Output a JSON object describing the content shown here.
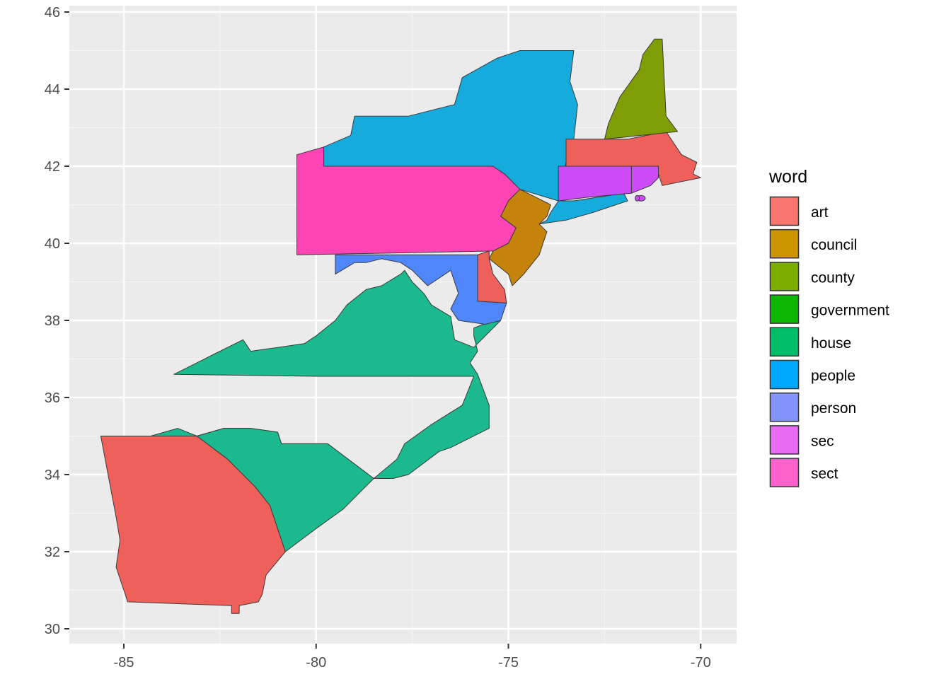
{
  "chart_data": {
    "type": "choropleth map",
    "x_ticks": [
      "-85",
      "-80",
      "-75",
      "-70"
    ],
    "y_ticks": [
      "30",
      "32",
      "34",
      "36",
      "38",
      "40",
      "42",
      "44",
      "46"
    ],
    "xlim": [
      -86.4,
      -69.1
    ],
    "ylim": [
      29.8,
      46.1
    ],
    "grid": true,
    "legend": {
      "title": "word",
      "position": "right",
      "entries": [
        {
          "label": "art",
          "color": "#F8766D"
        },
        {
          "label": "council",
          "color": "#CD9600"
        },
        {
          "label": "county",
          "color": "#7CAE00"
        },
        {
          "label": "government",
          "color": "#0CB702"
        },
        {
          "label": "house",
          "color": "#00BE67"
        },
        {
          "label": "people",
          "color": "#00A9FF"
        },
        {
          "label": "person",
          "color": "#8494FF"
        },
        {
          "label": "sec",
          "color": "#E76BF3"
        },
        {
          "label": "sect",
          "color": "#FF61CC"
        }
      ]
    },
    "regions": [
      {
        "word": "art",
        "color": "#F0605A",
        "coords": [
          [
            -85.6,
            35.0
          ],
          [
            -84.3,
            35.0
          ],
          [
            -83.1,
            35.0
          ],
          [
            -82.3,
            34.4
          ],
          [
            -81.6,
            33.7
          ],
          [
            -81.2,
            33.2
          ],
          [
            -81.0,
            32.6
          ],
          [
            -80.8,
            32.0
          ],
          [
            -81.3,
            31.4
          ],
          [
            -81.4,
            30.9
          ],
          [
            -81.5,
            30.7
          ],
          [
            -82.0,
            30.6
          ],
          [
            -82.0,
            30.4
          ],
          [
            -82.2,
            30.4
          ],
          [
            -82.2,
            30.6
          ],
          [
            -84.9,
            30.7
          ],
          [
            -85.0,
            31.0
          ],
          [
            -85.2,
            31.6
          ],
          [
            -85.1,
            32.3
          ],
          [
            -85.2,
            32.9
          ],
          [
            -85.6,
            35.0
          ]
        ]
      },
      {
        "word": "house",
        "color": "#1BB98D",
        "coords": [
          [
            -83.1,
            35.0
          ],
          [
            -82.4,
            35.2
          ],
          [
            -81.7,
            35.2
          ],
          [
            -81.0,
            35.1
          ],
          [
            -80.9,
            34.8
          ],
          [
            -79.7,
            34.8
          ],
          [
            -78.5,
            33.9
          ],
          [
            -78.0,
            33.9
          ],
          [
            -77.6,
            34.0
          ],
          [
            -76.8,
            34.6
          ],
          [
            -76.5,
            34.7
          ],
          [
            -75.5,
            35.2
          ],
          [
            -75.5,
            35.8
          ],
          [
            -75.8,
            36.6
          ],
          [
            -76.0,
            36.9
          ],
          [
            -75.8,
            37.2
          ],
          [
            -75.9,
            37.6
          ],
          [
            -75.9,
            37.8
          ],
          [
            -75.4,
            38.0
          ],
          [
            -75.2,
            38.0
          ],
          [
            -75.9,
            37.3
          ],
          [
            -76.4,
            37.5
          ],
          [
            -76.5,
            38.1
          ],
          [
            -77.0,
            38.4
          ],
          [
            -77.2,
            38.7
          ],
          [
            -77.5,
            39.0
          ],
          [
            -77.7,
            39.3
          ],
          [
            -77.8,
            39.2
          ],
          [
            -78.3,
            38.9
          ],
          [
            -78.7,
            38.8
          ],
          [
            -79.2,
            38.4
          ],
          [
            -79.5,
            38.0
          ],
          [
            -80.0,
            37.6
          ],
          [
            -80.3,
            37.4
          ],
          [
            -81.0,
            37.3
          ],
          [
            -81.7,
            37.2
          ],
          [
            -81.9,
            37.5
          ],
          [
            -82.7,
            37.1
          ],
          [
            -83.7,
            36.6
          ],
          [
            -80.0,
            36.55
          ],
          [
            -75.9,
            36.55
          ],
          [
            -76.0,
            36.3
          ],
          [
            -76.2,
            35.8
          ],
          [
            -77.0,
            35.3
          ],
          [
            -77.7,
            34.8
          ],
          [
            -77.9,
            34.4
          ],
          [
            -78.5,
            33.9
          ],
          [
            -79.7,
            34.8
          ],
          [
            -80.9,
            34.8
          ],
          [
            -81.0,
            35.1
          ],
          [
            -82.4,
            35.2
          ],
          [
            -83.1,
            35.0
          ],
          [
            -83.6,
            35.2
          ],
          [
            -84.3,
            35.0
          ]
        ]
      },
      {
        "word": "house",
        "color": "#1BB98D",
        "coords": [
          [
            -83.1,
            35.0
          ],
          [
            -82.3,
            34.4
          ],
          [
            -81.6,
            33.7
          ],
          [
            -81.2,
            33.2
          ],
          [
            -81.0,
            32.6
          ],
          [
            -80.8,
            32.0
          ],
          [
            -80.0,
            32.6
          ],
          [
            -79.3,
            33.1
          ],
          [
            -78.7,
            33.7
          ],
          [
            -78.5,
            33.9
          ],
          [
            -79.7,
            34.8
          ],
          [
            -80.9,
            34.8
          ],
          [
            -81.0,
            35.1
          ],
          [
            -81.7,
            35.2
          ],
          [
            -82.4,
            35.2
          ],
          [
            -83.1,
            35.0
          ]
        ]
      },
      {
        "word": "sect",
        "color": "#FF45B5",
        "coords": [
          [
            -80.5,
            42.3
          ],
          [
            -79.8,
            42.5
          ],
          [
            -79.8,
            42.0
          ],
          [
            -75.4,
            42.0
          ],
          [
            -75.1,
            41.8
          ],
          [
            -74.7,
            41.4
          ],
          [
            -75.0,
            41.1
          ],
          [
            -75.2,
            40.7
          ],
          [
            -74.8,
            40.4
          ],
          [
            -75.0,
            40.0
          ],
          [
            -75.4,
            39.8
          ],
          [
            -80.5,
            39.7
          ],
          [
            -80.5,
            42.3
          ]
        ]
      },
      {
        "word": "people",
        "color": "#16ABDD",
        "coords": [
          [
            -79.8,
            42.5
          ],
          [
            -79.8,
            42.0
          ],
          [
            -75.4,
            42.0
          ],
          [
            -75.1,
            41.8
          ],
          [
            -74.7,
            41.4
          ],
          [
            -73.7,
            41.1
          ],
          [
            -73.9,
            40.8
          ],
          [
            -74.0,
            40.6
          ],
          [
            -74.2,
            40.5
          ],
          [
            -73.5,
            40.6
          ],
          [
            -72.8,
            40.8
          ],
          [
            -71.9,
            41.1
          ],
          [
            -72.0,
            41.3
          ],
          [
            -73.3,
            41.1
          ],
          [
            -73.7,
            41.1
          ],
          [
            -73.5,
            42.1
          ],
          [
            -73.3,
            42.7
          ],
          [
            -73.2,
            43.6
          ],
          [
            -73.4,
            44.2
          ],
          [
            -73.3,
            45.0
          ],
          [
            -74.7,
            45.0
          ],
          [
            -75.3,
            44.8
          ],
          [
            -76.2,
            44.3
          ],
          [
            -76.4,
            43.6
          ],
          [
            -77.6,
            43.3
          ],
          [
            -79.0,
            43.3
          ],
          [
            -79.1,
            42.8
          ],
          [
            -79.8,
            42.5
          ]
        ]
      },
      {
        "word": "council",
        "color": "#C5830B",
        "coords": [
          [
            -74.7,
            41.4
          ],
          [
            -75.0,
            41.1
          ],
          [
            -75.2,
            40.7
          ],
          [
            -74.8,
            40.4
          ],
          [
            -75.0,
            40.0
          ],
          [
            -75.4,
            39.8
          ],
          [
            -75.5,
            39.6
          ],
          [
            -75.0,
            39.2
          ],
          [
            -74.9,
            38.9
          ],
          [
            -74.6,
            39.2
          ],
          [
            -74.2,
            39.7
          ],
          [
            -74.0,
            40.3
          ],
          [
            -74.2,
            40.5
          ],
          [
            -74.0,
            40.7
          ],
          [
            -73.9,
            41.0
          ],
          [
            -74.7,
            41.4
          ]
        ]
      },
      {
        "word": "art",
        "color": "#F0605A",
        "coords": [
          [
            -75.5,
            39.8
          ],
          [
            -75.8,
            39.7
          ],
          [
            -75.8,
            38.5
          ],
          [
            -75.05,
            38.45
          ],
          [
            -75.1,
            38.8
          ],
          [
            -75.4,
            39.2
          ],
          [
            -75.5,
            39.6
          ],
          [
            -75.5,
            39.8
          ]
        ]
      },
      {
        "word": "person",
        "color": "#4F87FA",
        "coords": [
          [
            -79.5,
            39.7
          ],
          [
            -75.8,
            39.7
          ],
          [
            -75.8,
            38.5
          ],
          [
            -75.05,
            38.45
          ],
          [
            -75.2,
            38.0
          ],
          [
            -75.6,
            37.9
          ],
          [
            -76.3,
            38.0
          ],
          [
            -76.5,
            38.3
          ],
          [
            -76.3,
            38.7
          ],
          [
            -76.5,
            39.3
          ],
          [
            -77.1,
            38.9
          ],
          [
            -77.5,
            39.3
          ],
          [
            -77.8,
            39.5
          ],
          [
            -78.3,
            39.6
          ],
          [
            -78.7,
            39.5
          ],
          [
            -79.0,
            39.5
          ],
          [
            -79.5,
            39.2
          ],
          [
            -79.5,
            39.7
          ]
        ]
      },
      {
        "word": "art",
        "color": "#F0605A",
        "coords": [
          [
            -73.5,
            42.7
          ],
          [
            -71.9,
            42.7
          ],
          [
            -70.9,
            42.9
          ],
          [
            -70.5,
            42.3
          ],
          [
            -70.1,
            42.1
          ],
          [
            -70.2,
            41.8
          ],
          [
            -70.0,
            41.7
          ],
          [
            -70.5,
            41.6
          ],
          [
            -71.0,
            41.5
          ],
          [
            -71.1,
            41.8
          ],
          [
            -71.4,
            41.9
          ],
          [
            -71.8,
            42.0
          ],
          [
            -73.5,
            42.0
          ],
          [
            -73.5,
            42.7
          ]
        ]
      },
      {
        "word": "sec",
        "color": "#CC4DF8",
        "coords": [
          [
            -73.7,
            42.0
          ],
          [
            -71.8,
            42.0
          ],
          [
            -71.8,
            41.3
          ],
          [
            -72.9,
            41.2
          ],
          [
            -73.7,
            41.1
          ],
          [
            -73.7,
            42.0
          ]
        ]
      },
      {
        "word": "sec",
        "color": "#CC4DF8",
        "coords": [
          [
            -71.8,
            42.0
          ],
          [
            -71.1,
            42.0
          ],
          [
            -71.1,
            41.7
          ],
          [
            -71.3,
            41.5
          ],
          [
            -71.8,
            41.3
          ],
          [
            -71.8,
            42.0
          ]
        ]
      },
      {
        "word": "county",
        "color": "#7F9E06",
        "coords": [
          [
            -72.5,
            42.7
          ],
          [
            -70.6,
            42.9
          ],
          [
            -70.9,
            43.3
          ],
          [
            -71.0,
            45.3
          ],
          [
            -71.2,
            45.3
          ],
          [
            -71.5,
            44.9
          ],
          [
            -71.6,
            44.5
          ],
          [
            -72.1,
            43.8
          ],
          [
            -72.4,
            43.1
          ],
          [
            -72.5,
            42.7
          ]
        ]
      }
    ]
  }
}
